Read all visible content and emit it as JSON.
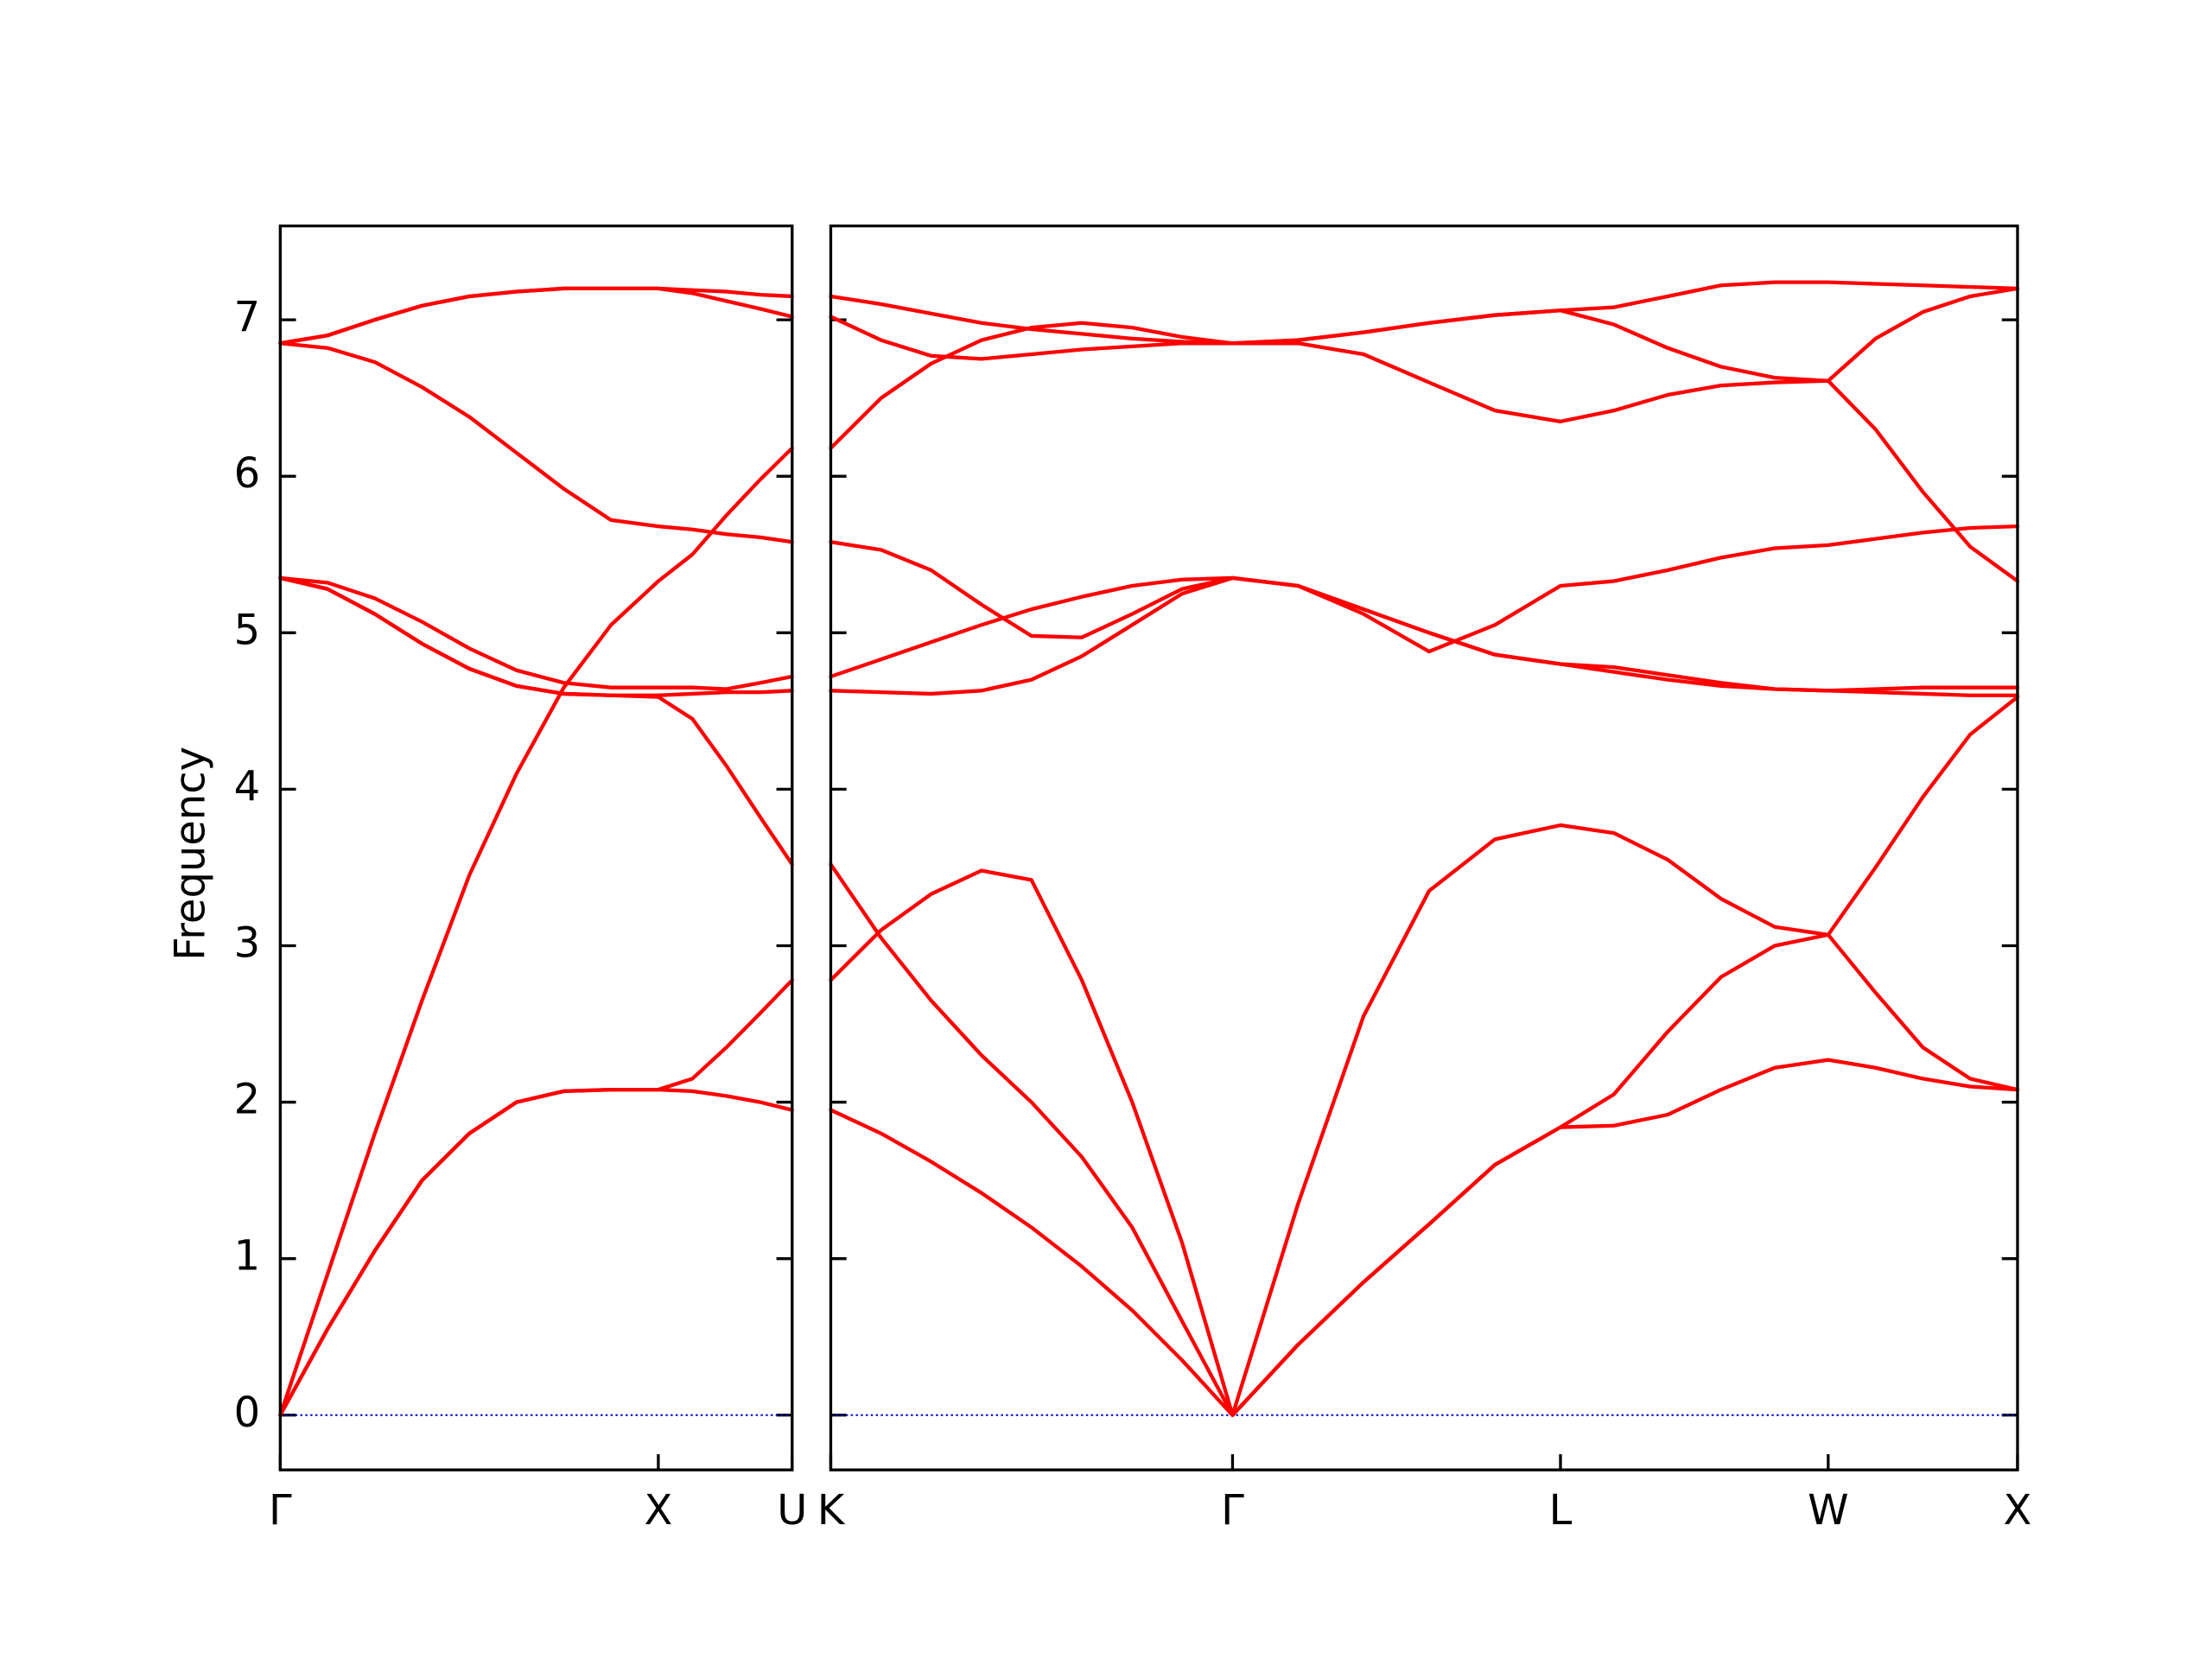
{
  "chart_data": [
    {
      "type": "line",
      "ylabel": "Frequency",
      "color": "#ff0000",
      "show_ytick_labels": true,
      "hline": 0,
      "hline_color": "#0000cd",
      "xlim": [
        0,
        1.354
      ],
      "ylim": [
        -0.35,
        7.6
      ],
      "xticks": [
        {
          "value": 0,
          "label": "Γ"
        },
        {
          "value": 1,
          "label": "X"
        },
        {
          "value": 1.354,
          "label": "U"
        }
      ],
      "yticks": [
        0,
        1,
        2,
        3,
        4,
        5,
        6,
        7
      ],
      "x": [
        0,
        0.125,
        0.25,
        0.375,
        0.5,
        0.625,
        0.75,
        0.875,
        1,
        1.09,
        1.18,
        1.27,
        1.354
      ],
      "series": [
        {
          "values": [
            0,
            0.55,
            1.05,
            1.5,
            1.8,
            2.0,
            2.07,
            2.08,
            2.08,
            2.07,
            2.04,
            2.0,
            1.95
          ]
        },
        {
          "values": [
            0,
            0.55,
            1.05,
            1.5,
            1.8,
            2.0,
            2.07,
            2.08,
            2.08,
            2.15,
            2.35,
            2.57,
            2.78
          ]
        },
        {
          "values": [
            0,
            0.9,
            1.8,
            2.65,
            3.45,
            4.1,
            4.65,
            5.05,
            5.33,
            5.5,
            5.75,
            5.98,
            6.18
          ]
        },
        {
          "values": [
            5.35,
            5.28,
            5.12,
            4.93,
            4.77,
            4.66,
            4.61,
            4.6,
            4.59,
            4.45,
            4.15,
            3.82,
            3.52
          ]
        },
        {
          "values": [
            5.35,
            5.28,
            5.12,
            4.93,
            4.77,
            4.66,
            4.61,
            4.6,
            4.6,
            4.61,
            4.62,
            4.62,
            4.63
          ]
        },
        {
          "values": [
            5.35,
            5.32,
            5.22,
            5.07,
            4.9,
            4.76,
            4.68,
            4.65,
            4.65,
            4.65,
            4.64,
            4.68,
            4.72
          ]
        },
        {
          "values": [
            6.85,
            6.82,
            6.73,
            6.57,
            6.38,
            6.15,
            5.92,
            5.72,
            5.68,
            5.66,
            5.63,
            5.61,
            5.58
          ]
        },
        {
          "values": [
            6.85,
            6.9,
            7.0,
            7.09,
            7.15,
            7.18,
            7.2,
            7.2,
            7.2,
            7.19,
            7.18,
            7.16,
            7.15
          ]
        },
        {
          "values": [
            6.85,
            6.9,
            7.0,
            7.09,
            7.15,
            7.18,
            7.2,
            7.2,
            7.2,
            7.17,
            7.12,
            7.07,
            7.02
          ]
        }
      ]
    },
    {
      "type": "line",
      "color": "#ff0000",
      "show_ytick_labels": false,
      "hline": 0,
      "hline_color": "#0000cd",
      "xlim": [
        1.354,
        4.488
      ],
      "ylim": [
        -0.35,
        7.6
      ],
      "xticks": [
        {
          "value": 1.354,
          "label": "K"
        },
        {
          "value": 2.415,
          "label": "Γ"
        },
        {
          "value": 3.281,
          "label": "L"
        },
        {
          "value": 3.988,
          "label": "W"
        },
        {
          "value": 4.488,
          "label": "X"
        }
      ],
      "yticks": [
        0,
        1,
        2,
        3,
        4,
        5,
        6,
        7
      ],
      "x": [
        1.354,
        1.487,
        1.619,
        1.752,
        1.884,
        2.017,
        2.15,
        2.282,
        2.415,
        2.588,
        2.761,
        2.934,
        3.108,
        3.281,
        3.422,
        3.564,
        3.705,
        3.847,
        3.988,
        4.113,
        4.238,
        4.363,
        4.488
      ],
      "series": [
        {
          "values": [
            1.95,
            1.8,
            1.62,
            1.42,
            1.2,
            0.95,
            0.67,
            0.35,
            0,
            0.45,
            0.85,
            1.22,
            1.6,
            1.84,
            1.85,
            1.92,
            2.08,
            2.22,
            2.27,
            2.22,
            2.15,
            2.1,
            2.08
          ]
        },
        {
          "values": [
            2.78,
            3.1,
            3.33,
            3.48,
            3.42,
            2.78,
            2.0,
            1.1,
            0,
            0.45,
            0.85,
            1.22,
            1.6,
            1.84,
            2.05,
            2.45,
            2.8,
            3.0,
            3.07,
            2.7,
            2.35,
            2.15,
            2.08
          ]
        },
        {
          "values": [
            3.52,
            3.05,
            2.65,
            2.3,
            2.0,
            1.65,
            1.2,
            0.6,
            0,
            1.35,
            2.55,
            3.35,
            3.68,
            3.77,
            3.72,
            3.55,
            3.3,
            3.12,
            3.07,
            3.5,
            3.95,
            4.35,
            4.59
          ]
        },
        {
          "values": [
            4.63,
            4.62,
            4.61,
            4.63,
            4.7,
            4.85,
            5.05,
            5.25,
            5.35,
            5.3,
            5.15,
            5.0,
            4.86,
            4.8,
            4.78,
            4.73,
            4.68,
            4.64,
            4.63,
            4.62,
            4.61,
            4.6,
            4.6
          ]
        },
        {
          "values": [
            4.72,
            4.83,
            4.94,
            5.05,
            5.15,
            5.23,
            5.3,
            5.34,
            5.35,
            5.3,
            5.15,
            5.0,
            4.86,
            4.8,
            4.75,
            4.7,
            4.66,
            4.64,
            4.63,
            4.64,
            4.65,
            4.65,
            4.65
          ]
        },
        {
          "values": [
            5.58,
            5.53,
            5.4,
            5.18,
            4.98,
            4.97,
            5.12,
            5.28,
            5.35,
            5.3,
            5.12,
            4.88,
            5.05,
            5.3,
            5.33,
            5.4,
            5.48,
            5.54,
            5.56,
            5.6,
            5.64,
            5.67,
            5.68
          ]
        },
        {
          "values": [
            6.18,
            6.5,
            6.72,
            6.87,
            6.95,
            6.98,
            6.95,
            6.89,
            6.85,
            6.85,
            6.78,
            6.6,
            6.42,
            6.35,
            6.42,
            6.52,
            6.58,
            6.6,
            6.61,
            6.3,
            5.9,
            5.55,
            5.33
          ]
        },
        {
          "values": [
            7.02,
            6.87,
            6.77,
            6.75,
            6.78,
            6.81,
            6.83,
            6.85,
            6.85,
            6.87,
            6.92,
            6.98,
            7.03,
            7.06,
            6.97,
            6.82,
            6.7,
            6.63,
            6.61,
            6.88,
            7.05,
            7.15,
            7.2
          ]
        },
        {
          "values": [
            7.15,
            7.1,
            7.04,
            6.98,
            6.94,
            6.91,
            6.88,
            6.86,
            6.85,
            6.87,
            6.92,
            6.98,
            7.03,
            7.06,
            7.08,
            7.15,
            7.22,
            7.24,
            7.24,
            7.23,
            7.22,
            7.21,
            7.2
          ]
        }
      ]
    }
  ]
}
